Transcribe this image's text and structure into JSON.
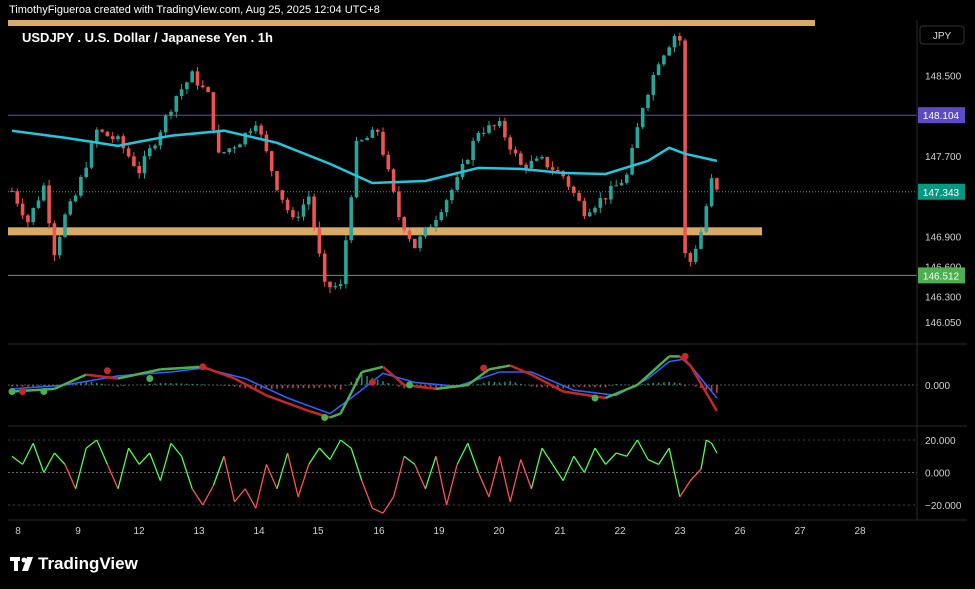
{
  "header": {
    "attribution": "TimothyFigueroa created with TradingView.com, Aug 25, 2025 12:04 UTC+8"
  },
  "footer": {
    "brand": "TradingView",
    "logo_icon": "tradingview-logo-icon"
  },
  "colors": {
    "up": "#26a69a",
    "down": "#ef5350",
    "ma": "#1ec8e0",
    "resistance": "#5c4bc4",
    "support": "#4caf50",
    "zone": "#ffc878",
    "macd": "#4caf50",
    "signal": "#2962ff",
    "macd_down": "#c62828",
    "osc_up": "#4cff4c",
    "osc_down": "#ff5252"
  },
  "chart_data": [
    {
      "type": "candlestick",
      "title": "USDJPY . U.S. Dollar / Japanese Yen . 1h",
      "currency_label": "JPY",
      "ylim": [
        145.85,
        149.05
      ],
      "y_ticks": [
        "148.500",
        "147.700",
        "146.900",
        "146.600",
        "146.300",
        "146.050"
      ],
      "y_tick_values": [
        148.5,
        147.7,
        146.9,
        146.6,
        146.3,
        146.05
      ],
      "price_labels": [
        {
          "name": "resistance",
          "label": "148.104",
          "value": 148.104,
          "color": "#5c4bc4"
        },
        {
          "name": "last",
          "label": "147.343",
          "value": 147.343,
          "color": "#089981"
        },
        {
          "name": "support",
          "label": "146.512",
          "value": 146.512,
          "color": "#4caf50"
        }
      ],
      "horizontal_lines": [
        {
          "name": "resistance",
          "value": 148.104,
          "color": "#5c4bc4"
        },
        {
          "name": "support",
          "value": 146.512,
          "color": "#4caf50"
        }
      ],
      "zones": [
        {
          "name": "top-band",
          "value": 149.05,
          "color": "#ffc878"
        },
        {
          "name": "support-zone",
          "value": 146.95,
          "color": "#ffc878"
        }
      ],
      "x_ticks": [
        "8",
        "9",
        "12",
        "13",
        "14",
        "15",
        "16",
        "19",
        "20",
        "21",
        "22",
        "23",
        "26",
        "27",
        "28"
      ],
      "close_path": [
        [
          0,
          147.35
        ],
        [
          3,
          147.05
        ],
        [
          6,
          147.4
        ],
        [
          8,
          146.75
        ],
        [
          10,
          147.1
        ],
        [
          12,
          147.3
        ],
        [
          16,
          147.95
        ],
        [
          20,
          147.85
        ],
        [
          24,
          147.55
        ],
        [
          27,
          147.85
        ],
        [
          31,
          148.3
        ],
        [
          34,
          148.5
        ],
        [
          37,
          148.3
        ],
        [
          39,
          147.7
        ],
        [
          43,
          147.85
        ],
        [
          46,
          148.05
        ],
        [
          50,
          147.4
        ],
        [
          53,
          147.05
        ],
        [
          56,
          147.3
        ],
        [
          59,
          146.4
        ],
        [
          62,
          146.4
        ],
        [
          65,
          147.8
        ],
        [
          69,
          147.95
        ],
        [
          73,
          147.1
        ],
        [
          76,
          146.8
        ],
        [
          80,
          147.1
        ],
        [
          84,
          147.45
        ],
        [
          88,
          147.95
        ],
        [
          92,
          148.0
        ],
        [
          96,
          147.6
        ],
        [
          100,
          147.65
        ],
        [
          104,
          147.5
        ],
        [
          108,
          147.15
        ],
        [
          112,
          147.3
        ],
        [
          116,
          147.5
        ],
        [
          119,
          148.2
        ],
        [
          122,
          148.65
        ],
        [
          125,
          148.9
        ],
        [
          126,
          148.85
        ],
        [
          126.5,
          146.75
        ],
        [
          128,
          146.65
        ],
        [
          130,
          146.95
        ],
        [
          132,
          147.45
        ],
        [
          133,
          147.343
        ]
      ],
      "ma_path": [
        [
          0,
          147.95
        ],
        [
          10,
          147.88
        ],
        [
          20,
          147.8
        ],
        [
          30,
          147.9
        ],
        [
          40,
          147.95
        ],
        [
          50,
          147.83
        ],
        [
          60,
          147.62
        ],
        [
          68,
          147.43
        ],
        [
          78,
          147.45
        ],
        [
          88,
          147.58
        ],
        [
          96,
          147.57
        ],
        [
          104,
          147.53
        ],
        [
          112,
          147.52
        ],
        [
          120,
          147.65
        ],
        [
          124,
          147.78
        ],
        [
          127,
          147.72
        ],
        [
          133,
          147.65
        ]
      ]
    },
    {
      "type": "line",
      "title": "",
      "ylim": [
        -0.3,
        0.3
      ],
      "y_ticks": [
        "0.000"
      ],
      "y_tick_values": [
        0
      ],
      "macd": [
        [
          0,
          -0.05
        ],
        [
          8,
          -0.03
        ],
        [
          14,
          0.08
        ],
        [
          20,
          0.05
        ],
        [
          28,
          0.12
        ],
        [
          36,
          0.14
        ],
        [
          42,
          0.05
        ],
        [
          48,
          -0.08
        ],
        [
          56,
          -0.2
        ],
        [
          60,
          -0.25
        ],
        [
          62,
          -0.22
        ],
        [
          66,
          0.1
        ],
        [
          70,
          0.14
        ],
        [
          74,
          0.0
        ],
        [
          80,
          -0.03
        ],
        [
          86,
          0.0
        ],
        [
          90,
          0.12
        ],
        [
          94,
          0.15
        ],
        [
          98,
          0.08
        ],
        [
          104,
          -0.05
        ],
        [
          112,
          -0.1
        ],
        [
          118,
          0.0
        ],
        [
          124,
          0.22
        ],
        [
          126,
          0.22
        ],
        [
          128,
          0.15
        ],
        [
          133,
          -0.2
        ]
      ],
      "signal": [
        [
          0,
          -0.03
        ],
        [
          10,
          0.0
        ],
        [
          20,
          0.07
        ],
        [
          30,
          0.1
        ],
        [
          36,
          0.13
        ],
        [
          44,
          0.05
        ],
        [
          52,
          -0.1
        ],
        [
          60,
          -0.22
        ],
        [
          64,
          -0.1
        ],
        [
          70,
          0.09
        ],
        [
          76,
          0.02
        ],
        [
          84,
          -0.01
        ],
        [
          92,
          0.1
        ],
        [
          98,
          0.1
        ],
        [
          106,
          -0.04
        ],
        [
          114,
          -0.08
        ],
        [
          120,
          0.05
        ],
        [
          124,
          0.18
        ],
        [
          127,
          0.2
        ],
        [
          133,
          -0.1
        ]
      ],
      "markers": [
        {
          "t": 0,
          "v": -0.05,
          "kind": "up"
        },
        {
          "t": 2,
          "v": -0.05,
          "kind": "down"
        },
        {
          "t": 6,
          "v": -0.05,
          "kind": "up"
        },
        {
          "t": 18,
          "v": 0.11,
          "kind": "down"
        },
        {
          "t": 26,
          "v": 0.05,
          "kind": "up"
        },
        {
          "t": 36,
          "v": 0.14,
          "kind": "down"
        },
        {
          "t": 59,
          "v": -0.25,
          "kind": "up"
        },
        {
          "t": 68,
          "v": 0.02,
          "kind": "down"
        },
        {
          "t": 75,
          "v": 0.0,
          "kind": "up"
        },
        {
          "t": 89,
          "v": 0.13,
          "kind": "down"
        },
        {
          "t": 110,
          "v": -0.1,
          "kind": "up"
        },
        {
          "t": 127,
          "v": 0.22,
          "kind": "down"
        }
      ]
    },
    {
      "type": "line",
      "title": "",
      "ylim": [
        -28,
        28
      ],
      "y_ticks": [
        "20.000",
        "0.000",
        "−20.000"
      ],
      "y_tick_values": [
        20,
        0,
        -20
      ],
      "oscillator": [
        [
          0,
          10
        ],
        [
          2,
          5
        ],
        [
          4,
          18
        ],
        [
          6,
          0
        ],
        [
          8,
          12
        ],
        [
          10,
          5
        ],
        [
          12,
          -10
        ],
        [
          14,
          15
        ],
        [
          16,
          20
        ],
        [
          18,
          5
        ],
        [
          20,
          -10
        ],
        [
          22,
          15
        ],
        [
          24,
          5
        ],
        [
          26,
          12
        ],
        [
          28,
          -5
        ],
        [
          30,
          18
        ],
        [
          32,
          10
        ],
        [
          34,
          -10
        ],
        [
          36,
          -20
        ],
        [
          38,
          -8
        ],
        [
          40,
          10
        ],
        [
          42,
          -18
        ],
        [
          44,
          -10
        ],
        [
          46,
          -22
        ],
        [
          48,
          5
        ],
        [
          50,
          -10
        ],
        [
          52,
          12
        ],
        [
          54,
          -15
        ],
        [
          56,
          5
        ],
        [
          58,
          15
        ],
        [
          60,
          8
        ],
        [
          62,
          20
        ],
        [
          64,
          15
        ],
        [
          66,
          -5
        ],
        [
          68,
          -22
        ],
        [
          70,
          -25
        ],
        [
          72,
          -15
        ],
        [
          74,
          10
        ],
        [
          76,
          5
        ],
        [
          78,
          -10
        ],
        [
          80,
          10
        ],
        [
          82,
          -20
        ],
        [
          84,
          5
        ],
        [
          86,
          18
        ],
        [
          88,
          0
        ],
        [
          90,
          -15
        ],
        [
          92,
          10
        ],
        [
          94,
          -18
        ],
        [
          96,
          8
        ],
        [
          98,
          -10
        ],
        [
          100,
          15
        ],
        [
          102,
          5
        ],
        [
          104,
          -5
        ],
        [
          106,
          10
        ],
        [
          108,
          0
        ],
        [
          110,
          15
        ],
        [
          112,
          5
        ],
        [
          114,
          12
        ],
        [
          116,
          10
        ],
        [
          118,
          20
        ],
        [
          120,
          8
        ],
        [
          122,
          5
        ],
        [
          124,
          15
        ],
        [
          126,
          -15
        ],
        [
          128,
          -5
        ],
        [
          130,
          2
        ],
        [
          131,
          20
        ],
        [
          132,
          18
        ],
        [
          133,
          12
        ]
      ]
    }
  ]
}
